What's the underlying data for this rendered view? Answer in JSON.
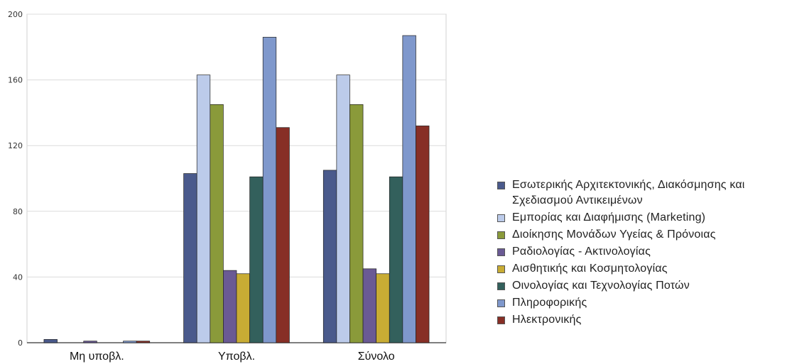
{
  "chart_data": {
    "type": "bar",
    "categories": [
      "Μη υποβλ.",
      "Υποβλ.",
      "Σύνολο"
    ],
    "ylim": [
      0,
      200
    ],
    "yticks": [
      0,
      40,
      80,
      120,
      160,
      200
    ],
    "series": [
      {
        "name": "Εσωτερικής Αρχιτεκτονικής, Διακόσμησης και Σχεδιασμού Αντικειμένων",
        "color": "#4a5a8c",
        "values": [
          2,
          103,
          105
        ]
      },
      {
        "name": "Εμπορίας και Διαφήμισης (Marketing)",
        "color": "#bccbea",
        "values": [
          0,
          163,
          163
        ]
      },
      {
        "name": "Διοίκησης Μονάδων Υγείας & Πρόνοιας",
        "color": "#8a9a3a",
        "values": [
          0,
          145,
          145
        ]
      },
      {
        "name": "Ραδιολογίας - Ακτινολογίας",
        "color": "#6a5a94",
        "values": [
          1,
          44,
          45
        ]
      },
      {
        "name": "Αισθητικής και Κοσμητολογίας",
        "color": "#c8ac34",
        "values": [
          0,
          42,
          42
        ]
      },
      {
        "name": "Οινολογίας και Τεχνολογίας Ποτών",
        "color": "#33605c",
        "values": [
          0,
          101,
          101
        ]
      },
      {
        "name": "Πληροφορικής",
        "color": "#7f98cc",
        "values": [
          1,
          186,
          187
        ]
      },
      {
        "name": "Ηλεκτρονικής",
        "color": "#872f26",
        "values": [
          1,
          131,
          132
        ]
      }
    ]
  }
}
